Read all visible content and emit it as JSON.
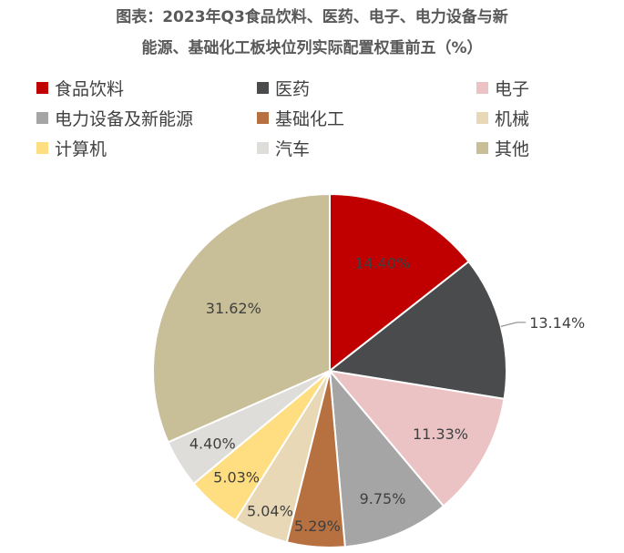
{
  "chart_data": {
    "type": "pie",
    "title_line1": "图表：2023年Q3食品饮料、医药、电子、电力设备与新",
    "title_line2": "能源、基础化工板块位列实际配置权重前五（%）",
    "legend_placement": "top",
    "series": [
      {
        "name": "食品饮料",
        "value": 14.4,
        "label": "14.40%",
        "color": "#C00000"
      },
      {
        "name": "医药",
        "value": 13.14,
        "label": "13.14%",
        "color": "#4A4B4D"
      },
      {
        "name": "电子",
        "value": 11.33,
        "label": "11.33%",
        "color": "#EBC3C4"
      },
      {
        "name": "电力设备及新能源",
        "value": 9.75,
        "label": "9.75%",
        "color": "#A5A5A5"
      },
      {
        "name": "基础化工",
        "value": 5.29,
        "label": "5.29%",
        "color": "#B7703F"
      },
      {
        "name": "机械",
        "value": 5.04,
        "label": "5.04%",
        "color": "#E8D8B6"
      },
      {
        "name": "计算机",
        "value": 5.03,
        "label": "5.03%",
        "color": "#FFDE82"
      },
      {
        "name": "汽车",
        "value": 4.4,
        "label": "4.40%",
        "color": "#DEDDDA"
      },
      {
        "name": "其他",
        "value": 31.62,
        "label": "31.62%",
        "color": "#C8BE98"
      }
    ]
  }
}
